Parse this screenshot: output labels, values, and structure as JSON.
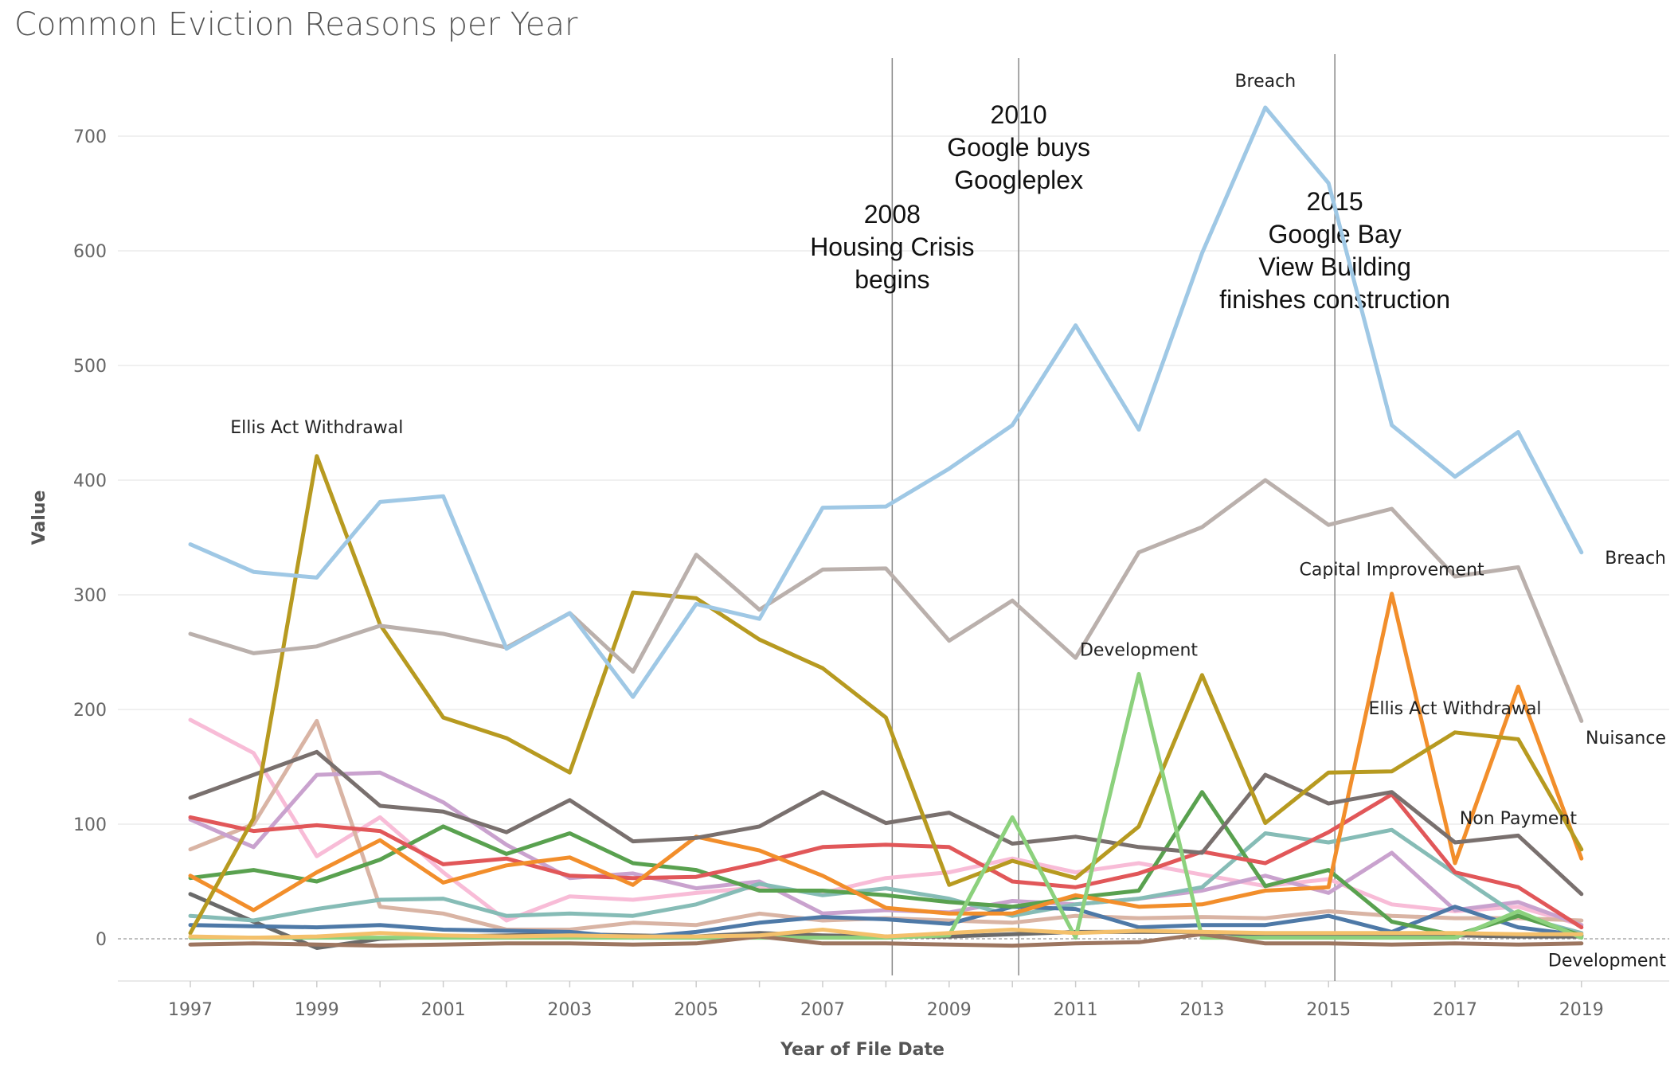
{
  "chart_data": {
    "type": "line",
    "title": "Common Eviction Reasons per Year",
    "xlabel": "Year of File Date",
    "ylabel": "Value",
    "xlim": [
      1996.5,
      2019.6
    ],
    "ylim": [
      -38,
      760
    ],
    "x_ticks": [
      1997,
      1999,
      2001,
      2003,
      2005,
      2007,
      2009,
      2011,
      2013,
      2015,
      2017,
      2019
    ],
    "y_ticks": [
      0,
      100,
      200,
      300,
      400,
      500,
      600,
      700
    ],
    "x": [
      1997,
      1998,
      1999,
      2000,
      2001,
      2002,
      2003,
      2004,
      2005,
      2006,
      2007,
      2008,
      2009,
      2010,
      2011,
      2012,
      2013,
      2014,
      2015,
      2016,
      2017,
      2018,
      2019
    ],
    "series": [
      {
        "color": "#6A6A6A",
        "values": [
          39,
          15,
          -8,
          0,
          2,
          3,
          4,
          3,
          2,
          5,
          3,
          2,
          2,
          4,
          6,
          6,
          6,
          3,
          2,
          4,
          3,
          2,
          2
        ]
      },
      {
        "color": "#F8BCD7",
        "values": [
          191,
          162,
          72,
          106,
          58,
          16,
          37,
          34,
          40,
          45,
          40,
          53,
          58,
          70,
          58,
          66,
          56,
          46,
          52,
          30,
          24,
          28,
          12
        ]
      },
      {
        "color": "#D9B4A4",
        "values": [
          78,
          100,
          190,
          28,
          22,
          8,
          8,
          14,
          12,
          22,
          16,
          18,
          16,
          14,
          20,
          18,
          19,
          18,
          24,
          20,
          18,
          18,
          16
        ]
      },
      {
        "color": "#C9A2CE",
        "values": [
          104,
          80,
          143,
          145,
          119,
          82,
          53,
          57,
          44,
          50,
          22,
          25,
          23,
          33,
          30,
          35,
          42,
          55,
          40,
          75,
          25,
          32,
          12
        ]
      },
      {
        "color": "#86BCB6",
        "values": [
          20,
          16,
          26,
          34,
          35,
          20,
          22,
          20,
          30,
          48,
          38,
          44,
          35,
          20,
          30,
          35,
          45,
          92,
          84,
          95,
          57,
          20,
          5
        ]
      },
      {
        "color": "#4E79A7",
        "values": [
          12,
          11,
          10,
          12,
          8,
          7,
          6,
          1,
          6,
          14,
          19,
          17,
          13,
          28,
          26,
          10,
          12,
          12,
          20,
          6,
          28,
          10,
          3
        ]
      },
      {
        "color": "#59A14F",
        "values": [
          53,
          60,
          50,
          69,
          98,
          74,
          92,
          66,
          60,
          42,
          42,
          38,
          32,
          28,
          36,
          42,
          128,
          46,
          60,
          15,
          3,
          20,
          3
        ]
      },
      {
        "color": "#E15759",
        "values": [
          106,
          94,
          99,
          94,
          65,
          70,
          55,
          53,
          54,
          66,
          80,
          82,
          80,
          50,
          45,
          57,
          76,
          66,
          93,
          126,
          58,
          45,
          10
        ]
      },
      {
        "color": "#F28E2B",
        "values": [
          55,
          25,
          58,
          86,
          49,
          64,
          71,
          47,
          89,
          77,
          55,
          27,
          22,
          22,
          38,
          28,
          30,
          42,
          45,
          301,
          66,
          220,
          70
        ]
      },
      {
        "color": "#79706E",
        "values": [
          123,
          143,
          163,
          116,
          111,
          93,
          121,
          85,
          88,
          98,
          128,
          101,
          110,
          83,
          89,
          80,
          75,
          143,
          118,
          128,
          84,
          90,
          39
        ]
      },
      {
        "color": "#B79A20",
        "values": [
          5,
          105,
          421,
          274,
          193,
          175,
          145,
          302,
          297,
          261,
          236,
          193,
          47,
          68,
          53,
          98,
          230,
          101,
          145,
          146,
          180,
          174,
          78
        ]
      },
      {
        "color": "#BAB0AC",
        "values": [
          266,
          249,
          255,
          273,
          266,
          254,
          284,
          233,
          335,
          287,
          322,
          323,
          260,
          295,
          245,
          337,
          359,
          400,
          361,
          375,
          316,
          324,
          190
        ]
      },
      {
        "color": "#8CD17D",
        "values": [
          1,
          1,
          1,
          1,
          1,
          1,
          1,
          1,
          1,
          1,
          1,
          1,
          3,
          106,
          1,
          231,
          1,
          1,
          1,
          1,
          1,
          24,
          1
        ]
      },
      {
        "color": "#9FC8E5",
        "values": [
          344,
          320,
          315,
          381,
          386,
          253,
          284,
          211,
          292,
          279,
          376,
          377,
          410,
          448,
          535,
          444,
          598,
          725,
          659,
          448,
          403,
          442,
          337
        ]
      },
      {
        "color": "#9D7660",
        "values": [
          -5,
          -4,
          -5,
          -6,
          -5,
          -4,
          -4,
          -5,
          -4,
          2,
          -4,
          -4,
          -5,
          -6,
          -4,
          -3,
          4,
          -4,
          -4,
          -5,
          -4,
          -5,
          -4
        ]
      },
      {
        "color": "#F4C06B",
        "values": [
          2,
          1,
          2,
          5,
          3,
          2,
          3,
          2,
          2,
          3,
          8,
          2,
          5,
          8,
          5,
          7,
          6,
          5,
          5,
          5,
          5,
          4,
          4
        ]
      }
    ],
    "event_lines": [
      {
        "x": 2008.1,
        "lines": [
          "2008",
          "Housing Crisis",
          "begins"
        ]
      },
      {
        "x": 2010.1,
        "lines": [
          "2010",
          "Google buys",
          "Googleplex"
        ]
      },
      {
        "x": 2015.1,
        "lines": [
          "2015",
          "Google Bay",
          "View Building",
          "finishes construction"
        ]
      }
    ],
    "annotations": [
      {
        "text": "Ellis Act Withdrawal",
        "x": 1999,
        "y": 441
      },
      {
        "text": "Breach",
        "x": 2014,
        "y": 743
      },
      {
        "text": "Development",
        "x": 2012,
        "y": 247
      },
      {
        "text": "Capital Improvement",
        "x": 2016,
        "y": 317
      },
      {
        "text": "Ellis Act Withdrawal",
        "x": 2017,
        "y": 196
      },
      {
        "text": "Non Payment",
        "x": 2018,
        "y": 100
      },
      {
        "text": "Breach",
        "x": 2019.5,
        "y": 327
      },
      {
        "text": "Nuisance",
        "x": 2019.5,
        "y": 170
      },
      {
        "text": "Development",
        "x": 2019.5,
        "y": -24
      }
    ],
    "grid": true,
    "legend": "none"
  }
}
